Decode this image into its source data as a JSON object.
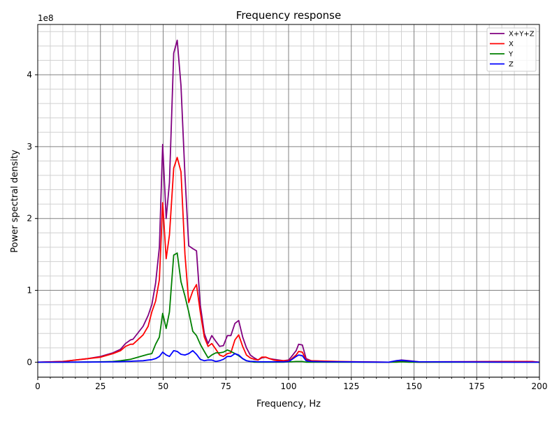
{
  "chart_data": {
    "type": "line",
    "title": "Frequency response",
    "xlabel": "Frequency, Hz",
    "ylabel": "Power spectral density",
    "y_offset_label": "1e8",
    "xlim": [
      0,
      200
    ],
    "ylim": [
      -0.21,
      4.7
    ],
    "x_ticks": [
      "0",
      "25",
      "50",
      "75",
      "100",
      "125",
      "150",
      "175",
      "200"
    ],
    "y_ticks": [
      "0",
      "1",
      "2",
      "3",
      "4"
    ],
    "grid": true,
    "legend_placement": "top-right",
    "x": [
      0,
      10,
      20,
      25,
      30,
      33,
      35,
      37,
      38,
      42,
      44,
      45.5,
      47,
      48.5,
      49.8,
      51.2,
      52.5,
      54.2,
      55.6,
      57.1,
      58.7,
      60.2,
      61.8,
      63.3,
      64.8,
      66.4,
      67.9,
      69.4,
      71,
      72.5,
      74,
      75.6,
      77,
      78.6,
      80.1,
      81.7,
      83.2,
      84.7,
      86.3,
      87.8,
      89.3,
      90.9,
      92.4,
      94,
      96,
      98,
      100,
      101,
      103,
      104,
      105.5,
      107,
      109,
      115,
      120,
      140,
      143,
      145,
      148,
      152,
      190,
      197,
      200
    ],
    "series": [
      {
        "name": "X+Y+Z",
        "color": "#800080",
        "values": [
          0,
          0.01,
          0.05,
          0.08,
          0.13,
          0.18,
          0.26,
          0.31,
          0.32,
          0.5,
          0.65,
          0.8,
          1.1,
          1.6,
          3.03,
          2.0,
          2.5,
          4.3,
          4.48,
          3.85,
          2.6,
          1.62,
          1.58,
          1.55,
          0.8,
          0.4,
          0.26,
          0.37,
          0.29,
          0.22,
          0.23,
          0.37,
          0.37,
          0.54,
          0.58,
          0.35,
          0.2,
          0.1,
          0.06,
          0.03,
          0.06,
          0.07,
          0.05,
          0.04,
          0.03,
          0.02,
          0.03,
          0.07,
          0.16,
          0.25,
          0.24,
          0.05,
          0.02,
          0.01,
          0.005,
          0,
          0.02,
          0.03,
          0.02,
          0.005,
          0.01,
          0.01,
          0
        ]
      },
      {
        "name": "X",
        "color": "#ff0000",
        "values": [
          0,
          0.01,
          0.05,
          0.07,
          0.12,
          0.16,
          0.22,
          0.25,
          0.25,
          0.38,
          0.5,
          0.7,
          0.85,
          1.15,
          2.22,
          1.44,
          1.77,
          2.7,
          2.85,
          2.65,
          1.5,
          0.83,
          0.99,
          1.08,
          0.7,
          0.35,
          0.22,
          0.26,
          0.18,
          0.1,
          0.08,
          0.12,
          0.13,
          0.31,
          0.38,
          0.22,
          0.1,
          0.06,
          0.04,
          0.03,
          0.07,
          0.07,
          0.05,
          0.03,
          0.02,
          0.02,
          0.02,
          0.04,
          0.1,
          0.15,
          0.14,
          0.03,
          0.02,
          0.015,
          0.01,
          0,
          0.005,
          0.01,
          0.005,
          0,
          0.01,
          0.01,
          0
        ]
      },
      {
        "name": "Y",
        "color": "#008000",
        "values": [
          0,
          0,
          0.002,
          0.005,
          0.01,
          0.02,
          0.03,
          0.04,
          0.05,
          0.09,
          0.11,
          0.12,
          0.25,
          0.35,
          0.68,
          0.47,
          0.7,
          1.49,
          1.52,
          1.12,
          0.92,
          0.7,
          0.43,
          0.37,
          0.25,
          0.15,
          0.06,
          0.1,
          0.13,
          0.13,
          0.14,
          0.17,
          0.15,
          0.12,
          0.09,
          0.05,
          0.02,
          0.01,
          0,
          0,
          0,
          0,
          0,
          0,
          0,
          0,
          0.005,
          0.005,
          0.01,
          0.01,
          0.01,
          0,
          0,
          0,
          0,
          0,
          0,
          0.005,
          0,
          0,
          0,
          0,
          0
        ]
      },
      {
        "name": "Z",
        "color": "#0000ff",
        "values": [
          0,
          0,
          0.002,
          0.003,
          0.005,
          0.007,
          0.01,
          0.012,
          0.015,
          0.02,
          0.03,
          0.035,
          0.05,
          0.08,
          0.14,
          0.1,
          0.08,
          0.16,
          0.15,
          0.11,
          0.1,
          0.12,
          0.16,
          0.11,
          0.04,
          0.02,
          0.03,
          0.03,
          0.01,
          0.02,
          0.04,
          0.08,
          0.08,
          0.12,
          0.1,
          0.05,
          0.02,
          0.01,
          0.01,
          0.005,
          0.005,
          0.005,
          0.005,
          0.005,
          0.005,
          0.005,
          0.01,
          0.03,
          0.08,
          0.1,
          0.09,
          0.02,
          0.01,
          0.005,
          0.005,
          0,
          0.02,
          0.025,
          0.015,
          0.005,
          0,
          0,
          0
        ]
      }
    ]
  }
}
